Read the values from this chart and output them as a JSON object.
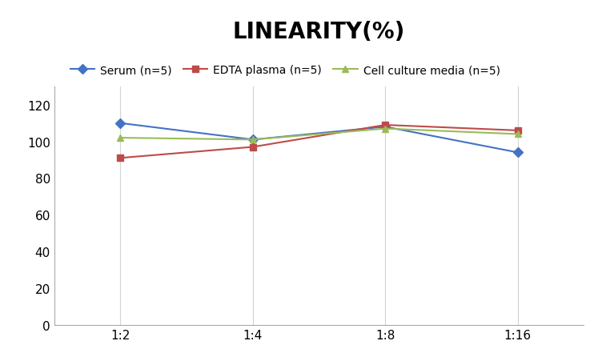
{
  "title": "LINEARITY(%)",
  "x_labels": [
    "1:2",
    "1:4",
    "1:8",
    "1:16"
  ],
  "x_positions": [
    0,
    1,
    2,
    3
  ],
  "series": [
    {
      "name": "Serum (n=5)",
      "values": [
        110,
        101,
        108,
        94
      ],
      "color": "#4472C4",
      "marker": "D",
      "marker_color": "#4472C4"
    },
    {
      "name": "EDTA plasma (n=5)",
      "values": [
        91,
        97,
        109,
        106
      ],
      "color": "#BE4B48",
      "marker": "s",
      "marker_color": "#BE4B48"
    },
    {
      "name": "Cell culture media (n=5)",
      "values": [
        102,
        101,
        107,
        104
      ],
      "color": "#9BBB59",
      "marker": "^",
      "marker_color": "#9BBB59"
    }
  ],
  "ylim": [
    0,
    130
  ],
  "yticks": [
    0,
    20,
    40,
    60,
    80,
    100,
    120
  ],
  "background_color": "#FFFFFF",
  "grid_color": "#D3D3D3",
  "title_fontsize": 20,
  "legend_fontsize": 10,
  "tick_fontsize": 11
}
